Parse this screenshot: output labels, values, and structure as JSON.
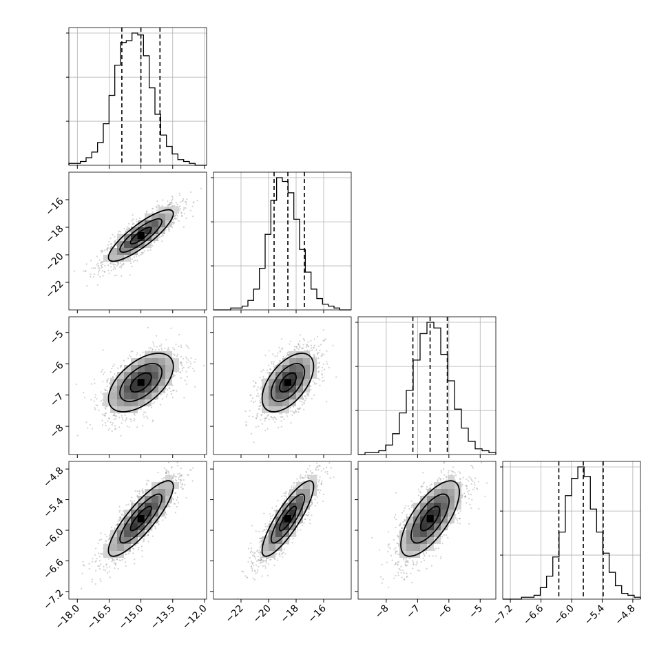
{
  "chart_data": {
    "type": "corner",
    "grid": true,
    "title": "",
    "variables": [
      {
        "range": [
          -18.4,
          -11.9
        ],
        "ticks": [
          -18.0,
          -16.5,
          -15.0,
          -13.5,
          -12.0
        ],
        "tick_labels": [
          "−18.0",
          "−16.5",
          "−15.0",
          "−13.5",
          "−12.0"
        ]
      },
      {
        "range": [
          -24.0,
          -14.0
        ],
        "ticks": [
          -22,
          -20,
          -18,
          -16
        ],
        "tick_labels": [
          "−22",
          "−20",
          "−18",
          "−16"
        ]
      },
      {
        "range": [
          -8.9,
          -4.5
        ],
        "ticks": [
          -8,
          -7,
          -6,
          -5
        ],
        "tick_labels": [
          "−8",
          "−7",
          "−6",
          "−5"
        ]
      },
      {
        "range": [
          -7.35,
          -4.65
        ],
        "ticks": [
          -7.2,
          -6.6,
          -6.0,
          -5.4,
          -4.8
        ],
        "tick_labels": [
          "−7.2",
          "−6.6",
          "−6.0",
          "−5.4",
          "−4.8"
        ]
      }
    ],
    "quantiles": [
      [
        -15.9,
        -15.0,
        -14.1
      ],
      [
        -19.6,
        -18.6,
        -17.4
      ],
      [
        -7.15,
        -6.6,
        -6.05
      ],
      [
        -6.25,
        -5.77,
        -5.38
      ]
    ],
    "histograms": [
      {
        "counts": [
          1,
          1,
          2,
          4,
          7,
          12,
          22,
          37,
          53,
          65,
          66,
          70,
          69,
          58,
          41,
          27,
          16,
          10,
          6,
          3,
          2,
          1,
          0,
          0
        ]
      },
      {
        "counts": [
          0,
          0,
          0,
          1,
          1,
          2,
          5,
          11,
          22,
          40,
          58,
          70,
          68,
          62,
          48,
          32,
          20,
          11,
          6,
          3,
          2,
          1,
          0,
          0
        ]
      },
      {
        "counts": [
          0,
          1,
          1,
          2,
          5,
          11,
          22,
          34,
          50,
          64,
          70,
          67,
          53,
          39,
          24,
          14,
          7,
          3,
          2,
          1
        ]
      },
      {
        "counts": [
          0,
          0,
          0,
          1,
          1,
          2,
          6,
          12,
          22,
          35,
          54,
          63,
          69,
          64,
          47,
          35,
          24,
          14,
          7,
          3,
          2,
          1
        ]
      }
    ],
    "correlations": {
      "1-0": 0.85,
      "2-0": 0.55,
      "2-1": 0.55,
      "3-0": 0.85,
      "3-1": 0.85,
      "3-2": 0.7
    }
  }
}
